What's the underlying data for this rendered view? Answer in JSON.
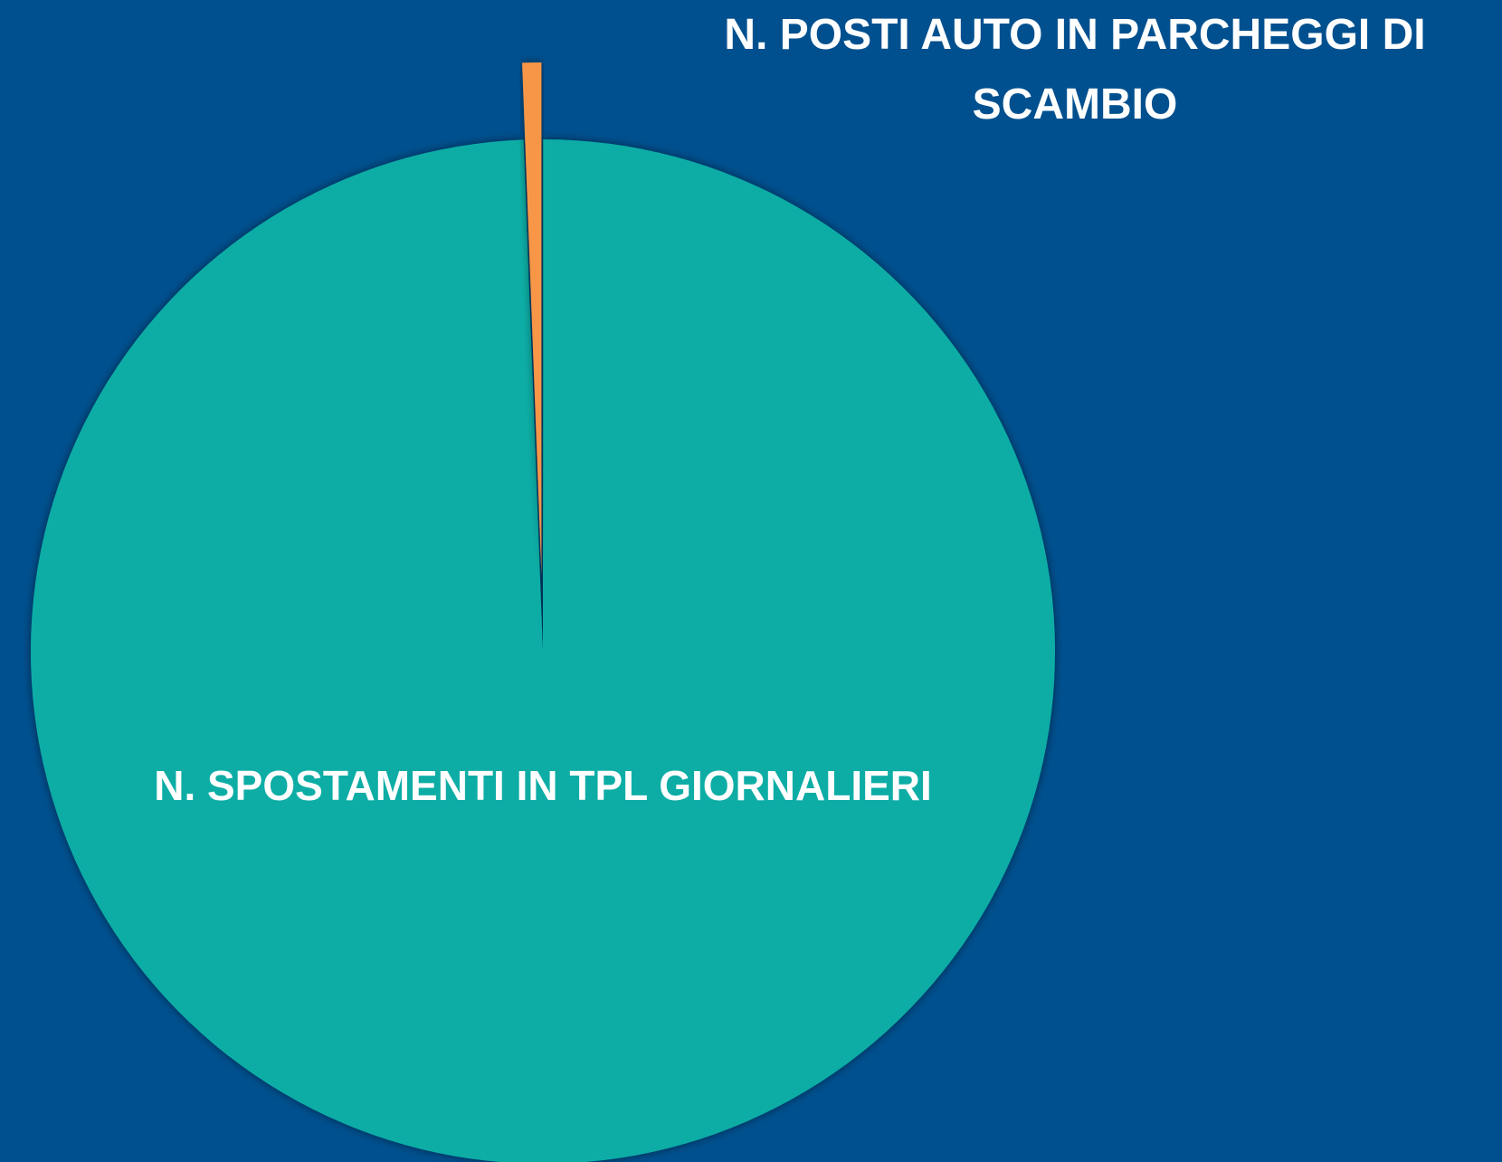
{
  "chart_data": {
    "type": "pie",
    "categories": [
      "N. SPOSTAMENTI IN TPL GIORNALIERI",
      "N. POSTI AUTO IN PARCHEGGI DI SCAMBIO"
    ],
    "values": [
      99.4,
      0.6
    ],
    "colors": [
      "#0aada5",
      "#f79646"
    ],
    "exploded": [
      false,
      true
    ]
  }
}
